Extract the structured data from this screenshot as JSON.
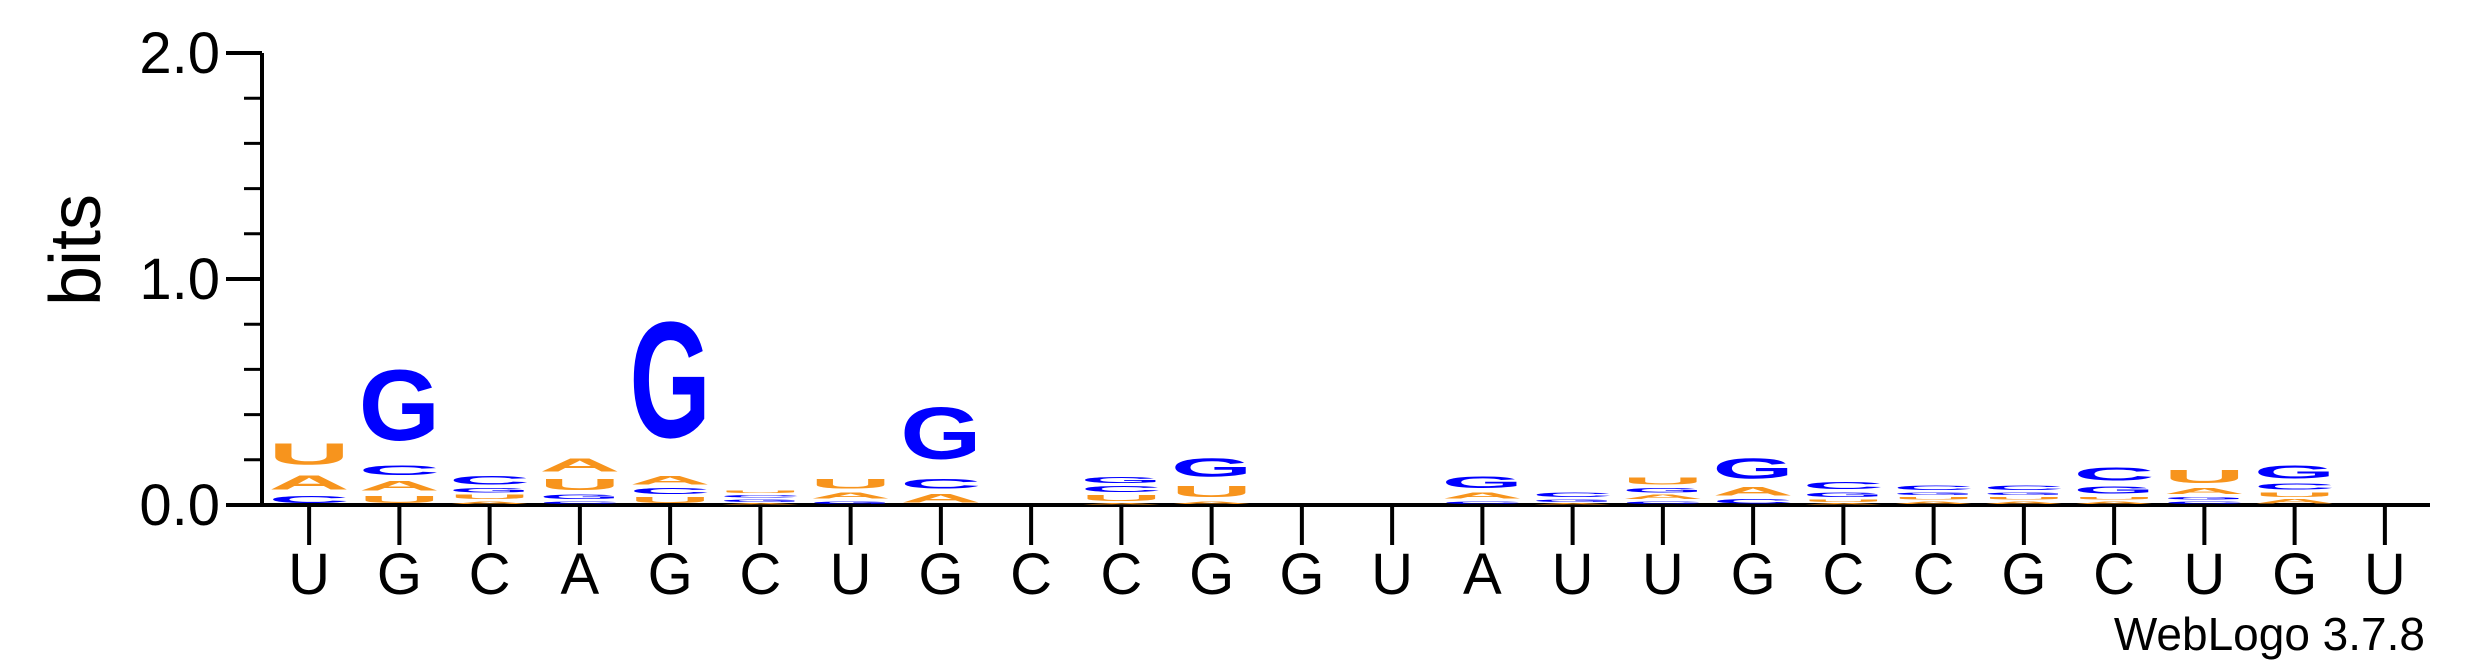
{
  "chart_data": {
    "type": "sequence-logo",
    "ylabel": "bits",
    "ylim": [
      0,
      2
    ],
    "yticks": [
      "0.0",
      "1.0",
      "2.0"
    ],
    "credit": "WebLogo 3.7.8",
    "colors": {
      "A": "#f7941d",
      "U": "#f7941d",
      "G": "#0000ff",
      "C": "#0000ff"
    },
    "positions": [
      {
        "label": "U",
        "stack": [
          [
            "C",
            0.05
          ],
          [
            "A",
            0.1
          ],
          [
            "U",
            0.15
          ]
        ]
      },
      {
        "label": "G",
        "stack": [
          [
            "U",
            0.05
          ],
          [
            "A",
            0.07
          ],
          [
            "C",
            0.07
          ],
          [
            "G",
            0.5
          ]
        ]
      },
      {
        "label": "C",
        "stack": [
          [
            "A",
            0.02
          ],
          [
            "U",
            0.03
          ],
          [
            "G",
            0.03
          ],
          [
            "C",
            0.06
          ]
        ]
      },
      {
        "label": "A",
        "stack": [
          [
            "C",
            0.02
          ],
          [
            "G",
            0.03
          ],
          [
            "U",
            0.08
          ],
          [
            "A",
            0.09
          ]
        ]
      },
      {
        "label": "G",
        "stack": [
          [
            "U",
            0.04
          ],
          [
            "C",
            0.04
          ],
          [
            "A",
            0.06
          ],
          [
            "G",
            0.82
          ]
        ]
      },
      {
        "label": "C",
        "stack": [
          [
            "A",
            0.01
          ],
          [
            "G",
            0.02
          ],
          [
            "C",
            0.02
          ],
          [
            "U",
            0.02
          ]
        ]
      },
      {
        "label": "U",
        "stack": [
          [
            "G",
            0.02
          ],
          [
            "A",
            0.04
          ],
          [
            "U",
            0.07
          ]
        ]
      },
      {
        "label": "G",
        "stack": [
          [
            "A",
            0.06
          ],
          [
            "C",
            0.07
          ],
          [
            "G",
            0.37
          ]
        ]
      },
      {
        "label": "C",
        "stack": []
      },
      {
        "label": "C",
        "stack": [
          [
            "A",
            0.01
          ],
          [
            "U",
            0.04
          ],
          [
            "C",
            0.04
          ],
          [
            "G",
            0.04
          ]
        ]
      },
      {
        "label": "G",
        "stack": [
          [
            "A",
            0.02
          ],
          [
            "U",
            0.08
          ],
          [
            "G",
            0.13
          ]
        ]
      },
      {
        "label": "G",
        "stack": []
      },
      {
        "label": "U",
        "stack": []
      },
      {
        "label": "A",
        "stack": [
          [
            "C",
            0.02
          ],
          [
            "A",
            0.04
          ],
          [
            "G",
            0.08
          ]
        ]
      },
      {
        "label": "U",
        "stack": [
          [
            "A",
            0.01
          ],
          [
            "G",
            0.02
          ],
          [
            "C",
            0.03
          ]
        ]
      },
      {
        "label": "U",
        "stack": [
          [
            "C",
            0.02
          ],
          [
            "A",
            0.03
          ],
          [
            "G",
            0.03
          ],
          [
            "U",
            0.05
          ]
        ]
      },
      {
        "label": "G",
        "stack": [
          [
            "C",
            0.03
          ],
          [
            "A",
            0.06
          ],
          [
            "G",
            0.14
          ]
        ]
      },
      {
        "label": "C",
        "stack": [
          [
            "A",
            0.01
          ],
          [
            "U",
            0.02
          ],
          [
            "G",
            0.03
          ],
          [
            "C",
            0.05
          ]
        ]
      },
      {
        "label": "C",
        "stack": [
          [
            "A",
            0.02
          ],
          [
            "U",
            0.02
          ],
          [
            "G",
            0.02
          ],
          [
            "C",
            0.03
          ]
        ]
      },
      {
        "label": "G",
        "stack": [
          [
            "A",
            0.02
          ],
          [
            "U",
            0.02
          ],
          [
            "G",
            0.02
          ],
          [
            "C",
            0.03
          ]
        ]
      },
      {
        "label": "C",
        "stack": [
          [
            "A",
            0.02
          ],
          [
            "U",
            0.02
          ],
          [
            "G",
            0.05
          ],
          [
            "C",
            0.09
          ]
        ]
      },
      {
        "label": "U",
        "stack": [
          [
            "C",
            0.02
          ],
          [
            "G",
            0.02
          ],
          [
            "A",
            0.04
          ],
          [
            "U",
            0.09
          ]
        ]
      },
      {
        "label": "G",
        "stack": [
          [
            "A",
            0.03
          ],
          [
            "U",
            0.03
          ],
          [
            "C",
            0.04
          ],
          [
            "G",
            0.09
          ]
        ]
      },
      {
        "label": "U",
        "stack": []
      }
    ]
  }
}
